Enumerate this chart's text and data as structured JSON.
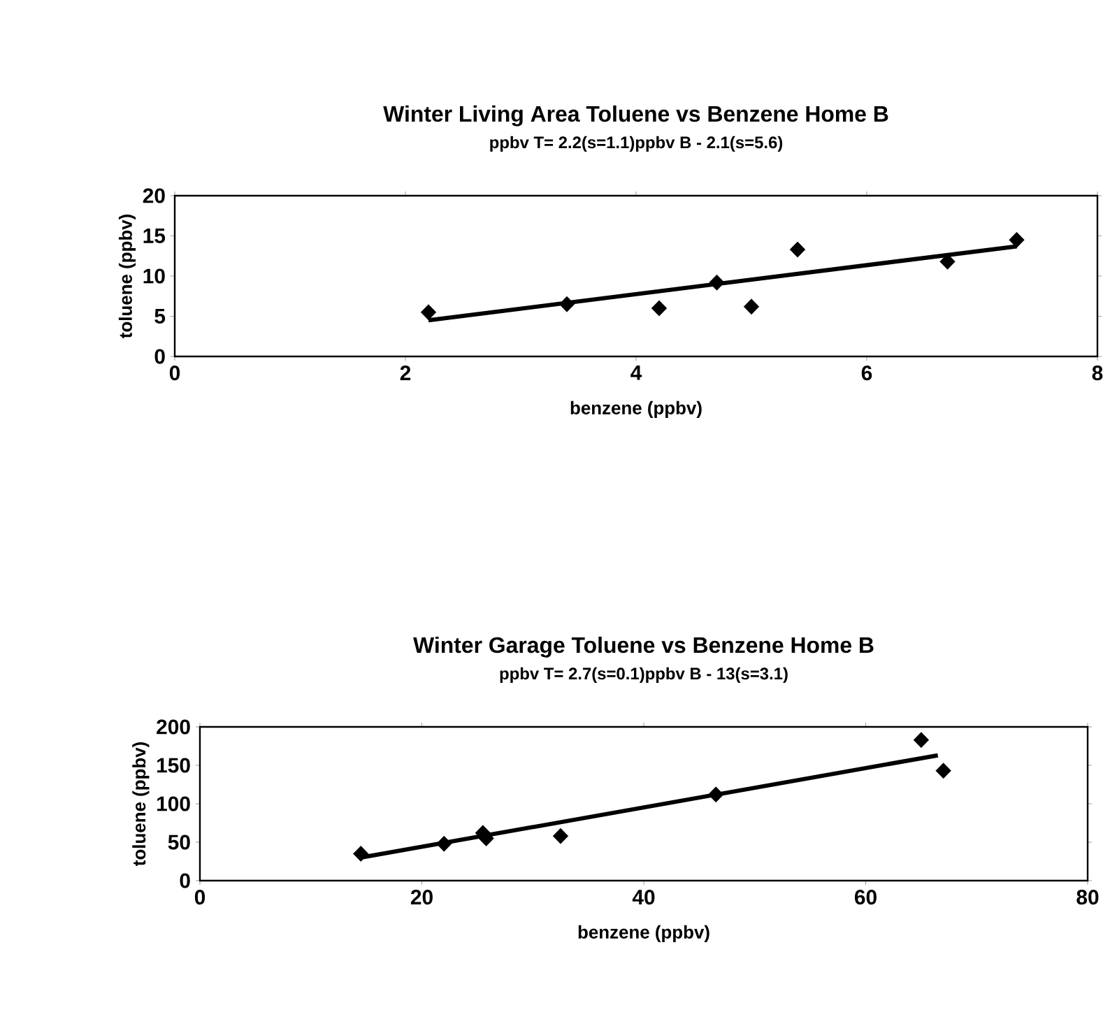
{
  "chart_data": [
    {
      "type": "scatter",
      "title": "Winter Living Area Toluene vs Benzene Home B",
      "subtitle": "ppbv T= 2.2(s=1.1)ppbv B - 2.1(s=5.6)",
      "xlabel": "benzene (ppbv)",
      "ylabel": "toluene (ppbv)",
      "xlim": [
        0,
        8
      ],
      "xticks": [
        0,
        2,
        4,
        6,
        8
      ],
      "ylim": [
        0,
        20
      ],
      "yticks": [
        0,
        5,
        10,
        15,
        20
      ],
      "grid": false,
      "series": [
        {
          "marker": "diamond",
          "color": "#000000",
          "x": [
            2.2,
            3.4,
            4.2,
            4.7,
            5.0,
            5.4,
            6.7,
            7.3
          ],
          "values": [
            5.5,
            6.5,
            6.0,
            9.2,
            6.2,
            13.3,
            11.8,
            14.5
          ]
        },
        {
          "type": "line",
          "marker": "none",
          "color": "#000000",
          "x": [
            2.2,
            7.3
          ],
          "values": [
            4.5,
            13.7
          ]
        }
      ]
    },
    {
      "type": "scatter",
      "title": "Winter Garage Toluene vs Benzene Home B",
      "subtitle": "ppbv T= 2.7(s=0.1)ppbv B - 13(s=3.1)",
      "xlabel": "benzene (ppbv)",
      "ylabel": "toluene (ppbv)",
      "xlim": [
        0,
        80
      ],
      "xticks": [
        0,
        20,
        40,
        60,
        80
      ],
      "ylim": [
        0,
        200
      ],
      "yticks": [
        0,
        50,
        100,
        150,
        200
      ],
      "grid": false,
      "series": [
        {
          "marker": "diamond",
          "color": "#000000",
          "x": [
            14.5,
            22,
            25.5,
            25.8,
            32.5,
            46.5,
            65,
            67
          ],
          "values": [
            35,
            48,
            62,
            55,
            58,
            112,
            183,
            143
          ]
        },
        {
          "type": "line",
          "marker": "none",
          "color": "#000000",
          "x": [
            14.5,
            66.5
          ],
          "values": [
            30,
            163
          ]
        }
      ]
    }
  ]
}
